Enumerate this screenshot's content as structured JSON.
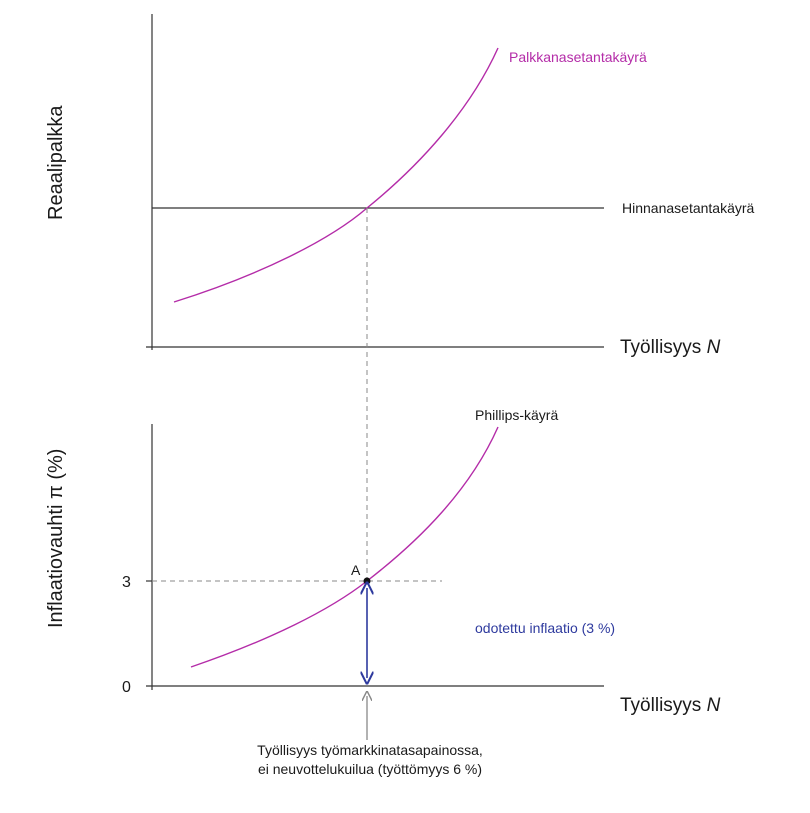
{
  "colors": {
    "axis": "#333333",
    "curve": "#b42ca8",
    "label_curve": "#b42ca8",
    "dashed": "#888888",
    "arrow": "#2e3a9e",
    "text": "#1a1a1a"
  },
  "top": {
    "y_axis_label": "Reaalipalkka",
    "x_axis_label": "Työllisyys ",
    "x_axis_var": "N",
    "wage_curve_label": "Palkkanasetantakäyrä",
    "price_curve_label": "Hinnanasetantakäyrä"
  },
  "bottom": {
    "y_axis_label": "Inflaatiovauhti π (%)",
    "x_axis_label": "Työllisyys ",
    "x_axis_var": "N",
    "curve_label": "Phillips-käyrä",
    "point_label": "A",
    "tick_3": "3",
    "tick_0": "0",
    "arrow_label": "odotettu inflaatio (3 %)"
  },
  "footnote": {
    "line1": "Työllisyys työmarkkinatasapainossa,",
    "line2": "ei neuvottelukuilua (työttömyys 6 %)"
  },
  "icons": [
    "arrow-up-icon",
    "double-arrow-icon"
  ]
}
